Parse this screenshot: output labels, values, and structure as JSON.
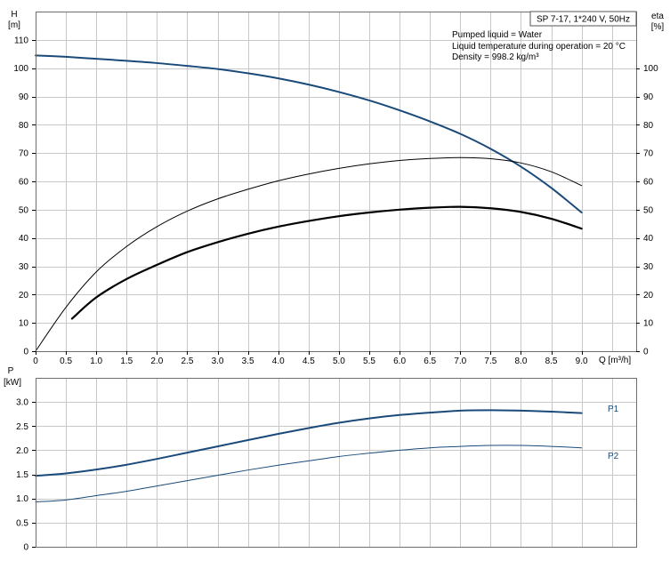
{
  "chart_data": [
    {
      "type": "line",
      "id": "top",
      "y_axis_label": "H",
      "y_axis_unit": "[m]",
      "right_axis_label": "eta",
      "right_axis_unit": "[%]",
      "x_axis_label": "Q [m³/h]",
      "xlim": [
        0,
        9.9
      ],
      "ylim": [
        0,
        120
      ],
      "grid": true,
      "title_box": "SP 7-17, 1*240 V, 50Hz",
      "info_lines": [
        "Pumped liquid = Water",
        "Liquid temperature during operation = 20 °C",
        "Density = 998.2 kg/m³"
      ],
      "x_ticks": [
        "0",
        "0.5",
        "1.0",
        "1.5",
        "2.0",
        "2.5",
        "3.0",
        "3.5",
        "4.0",
        "4.5",
        "5.0",
        "5.5",
        "6.0",
        "6.5",
        "7.0",
        "7.5",
        "8.0",
        "8.5",
        "9.0"
      ],
      "y_ticks": [
        "0",
        "10",
        "20",
        "30",
        "40",
        "50",
        "60",
        "70",
        "80",
        "90",
        "100",
        "110"
      ],
      "right_ticks": [
        "0",
        "10",
        "20",
        "30",
        "40",
        "50",
        "60",
        "70",
        "80",
        "90",
        "100"
      ],
      "series": [
        {
          "color": "#1a4a7a",
          "width": 2,
          "x": [
            0,
            0.5,
            1.0,
            1.5,
            2.0,
            2.5,
            3.0,
            3.5,
            4.0,
            4.5,
            5.0,
            5.5,
            6.0,
            6.5,
            7.0,
            7.5,
            8.0,
            8.5,
            9.0
          ],
          "y": [
            104.5,
            104.0,
            103.3,
            102.6,
            101.8,
            100.8,
            99.7,
            98.2,
            96.4,
            94.2,
            91.6,
            88.6,
            85.1,
            81.2,
            76.8,
            71.5,
            65.2,
            57.7,
            49.0
          ]
        },
        {
          "color": "#000000",
          "width": 1,
          "x": [
            0,
            0.5,
            1.0,
            1.5,
            2.0,
            2.5,
            3.0,
            3.5,
            4.0,
            4.5,
            5.0,
            5.5,
            6.0,
            6.5,
            7.0,
            7.5,
            8.0,
            8.5,
            9.0
          ],
          "y": [
            0,
            15.5,
            28.0,
            37.0,
            44.0,
            49.5,
            53.8,
            57.2,
            60.2,
            62.6,
            64.6,
            66.2,
            67.4,
            68.1,
            68.4,
            68.0,
            66.5,
            63.4,
            58.5
          ]
        },
        {
          "color": "#000000",
          "width": 2.2,
          "x": [
            0.6,
            1.0,
            1.5,
            2.0,
            2.5,
            3.0,
            3.5,
            4.0,
            4.5,
            5.0,
            5.5,
            6.0,
            6.5,
            7.0,
            7.5,
            8.0,
            8.5,
            9.0
          ],
          "y": [
            11.5,
            19.0,
            25.5,
            30.5,
            35.0,
            38.5,
            41.5,
            44.0,
            46.0,
            47.7,
            49.0,
            50.0,
            50.7,
            51.0,
            50.5,
            49.2,
            46.8,
            43.3
          ]
        }
      ]
    },
    {
      "type": "line",
      "id": "bottom",
      "y_axis_label": "P",
      "y_axis_unit": "[kW]",
      "xlim": [
        0,
        9.9
      ],
      "ylim": [
        0,
        3.5
      ],
      "grid": true,
      "y_ticks": [
        "0",
        "0.5",
        "1.0",
        "1.5",
        "2.0",
        "2.5",
        "3.0"
      ],
      "series": [
        {
          "name": "P1",
          "color": "#1a4a7a",
          "width": 2,
          "x": [
            0,
            0.5,
            1.0,
            1.5,
            2.0,
            2.5,
            3.0,
            3.5,
            4.0,
            4.5,
            5.0,
            5.5,
            6.0,
            6.5,
            7.0,
            7.5,
            8.0,
            8.5,
            9.0
          ],
          "y": [
            1.47,
            1.52,
            1.6,
            1.7,
            1.82,
            1.95,
            2.08,
            2.21,
            2.34,
            2.46,
            2.57,
            2.66,
            2.73,
            2.78,
            2.82,
            2.83,
            2.82,
            2.8,
            2.77
          ]
        },
        {
          "name": "P2",
          "color": "#1a4a7a",
          "width": 1,
          "x": [
            0,
            0.5,
            1.0,
            1.5,
            2.0,
            2.5,
            3.0,
            3.5,
            4.0,
            4.5,
            5.0,
            5.5,
            6.0,
            6.5,
            7.0,
            7.5,
            8.0,
            8.5,
            9.0
          ],
          "y": [
            0.93,
            0.97,
            1.06,
            1.15,
            1.26,
            1.37,
            1.48,
            1.59,
            1.69,
            1.78,
            1.87,
            1.94,
            2.0,
            2.05,
            2.08,
            2.1,
            2.1,
            2.08,
            2.05
          ]
        }
      ]
    }
  ]
}
